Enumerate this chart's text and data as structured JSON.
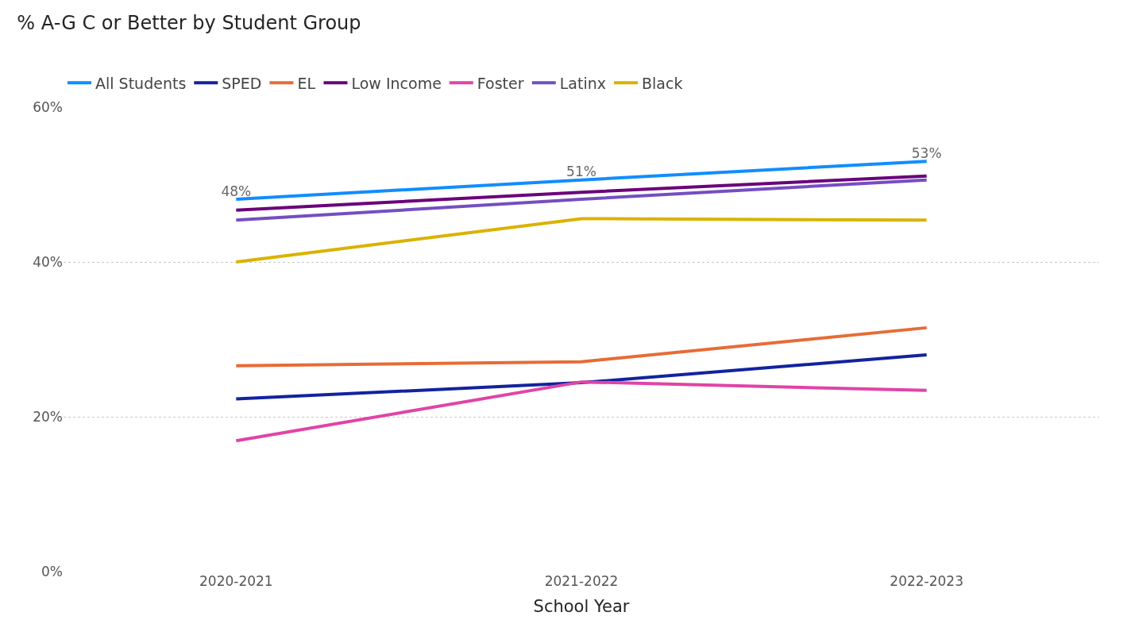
{
  "chart_data": {
    "type": "line",
    "title": "% A-G C or Better by Student Group",
    "xlabel": "School Year",
    "categories": [
      "2020-2021",
      "2021-2022",
      "2022-2023"
    ],
    "series": [
      {
        "name": "All Students",
        "color": "#118dff",
        "values": [
          48.1,
          50.6,
          53.0
        ],
        "value_labels": [
          "48%",
          "51%",
          "53%"
        ]
      },
      {
        "name": "SPED",
        "color": "#12239e",
        "values": [
          22.3,
          24.4,
          28.0
        ]
      },
      {
        "name": "EL",
        "color": "#e66c37",
        "values": [
          26.6,
          27.1,
          31.5
        ]
      },
      {
        "name": "Low Income",
        "color": "#6b007b",
        "values": [
          46.7,
          49.0,
          51.1
        ]
      },
      {
        "name": "Foster",
        "color": "#e044a7",
        "values": [
          16.9,
          24.5,
          23.4
        ]
      },
      {
        "name": "Latinx",
        "color": "#744ec2",
        "values": [
          45.4,
          48.1,
          50.6
        ]
      },
      {
        "name": "Black",
        "color": "#d9b300",
        "values": [
          40.0,
          45.6,
          45.4
        ]
      }
    ],
    "ylim": [
      0,
      60
    ],
    "yticks": [
      {
        "value": 0,
        "label": "0%"
      },
      {
        "value": 20,
        "label": "20%"
      },
      {
        "value": 40,
        "label": "40%"
      },
      {
        "value": 60,
        "label": "60%"
      }
    ],
    "grid": "y",
    "legend": "top left",
    "marker": "none",
    "line_style": "solid"
  }
}
